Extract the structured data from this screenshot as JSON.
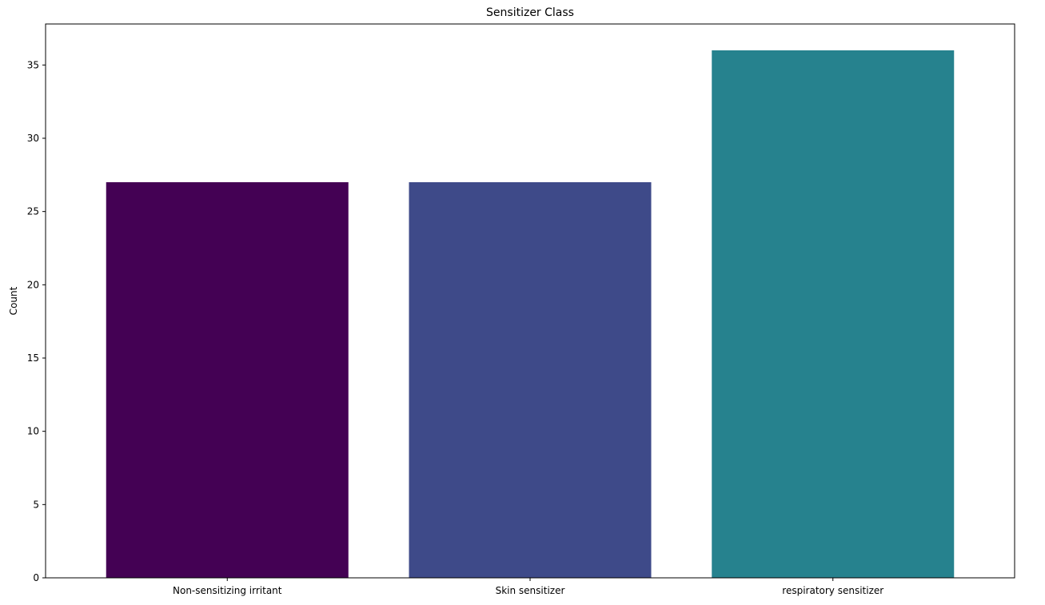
{
  "chart_data": {
    "type": "bar",
    "title": "Sensitizer Class",
    "xlabel": "",
    "ylabel": "Count",
    "categories": [
      "Non-sensitizing irritant",
      "Skin sensitizer",
      "respiratory sensitizer"
    ],
    "values": [
      27,
      27,
      36
    ],
    "colors": [
      "#440154",
      "#3e4a89",
      "#26828e"
    ],
    "ylim": [
      0,
      37.8
    ],
    "yticks": [
      0,
      5,
      10,
      15,
      20,
      25,
      30,
      35
    ],
    "grid": false,
    "legend": false
  }
}
